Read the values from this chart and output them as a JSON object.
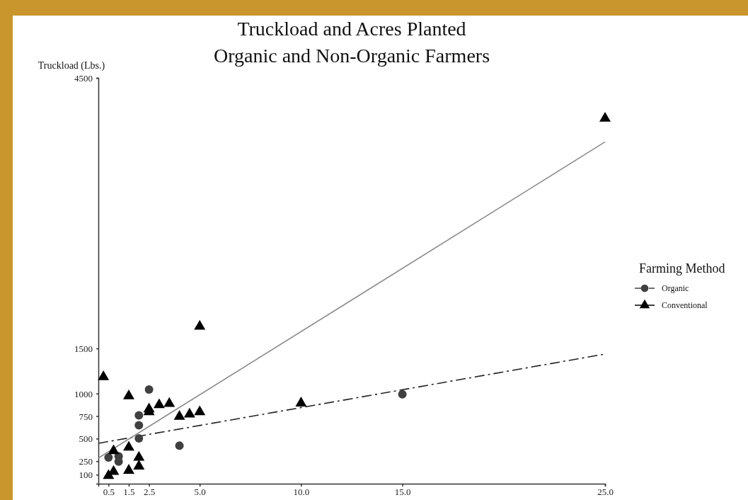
{
  "chart_data": {
    "type": "scatter",
    "title": "Truckload and Acres Planted\nOrganic and Non-Organic Farmers",
    "ylabel": "Truckload (Lbs.)",
    "legend_title": "Farming Method",
    "legend": "right",
    "xlim": [
      0,
      25
    ],
    "ylim": [
      0,
      4500
    ],
    "xticks": [
      0.5,
      1.5,
      2.5,
      {
        "value": 5,
        "label": "5.0"
      },
      {
        "value": 10,
        "label": "10.0"
      },
      {
        "value": 15,
        "label": "15.0"
      },
      {
        "value": 25,
        "label": "25.0"
      }
    ],
    "yticks": [
      100,
      250,
      500,
      750,
      1000,
      1500,
      4500
    ],
    "series": [
      {
        "name": "Organic",
        "marker": "circle",
        "line_style": "dashed",
        "color": "#404040",
        "x": [
          2.5,
          2,
          2,
          2,
          4,
          0.5,
          1,
          1,
          15
        ],
        "values": [
          1045,
          757,
          647,
          503,
          422,
          291,
          304,
          246,
          992
        ]
      },
      {
        "name": "Conventional",
        "marker": "triangle",
        "line_style": "solid",
        "color": "#000000",
        "x": [
          0.25,
          1.5,
          2.5,
          2.5,
          3,
          3.5,
          4,
          4.5,
          5,
          0.75,
          1.5,
          2,
          2,
          1.5,
          0.75,
          0.5,
          5,
          10,
          25
        ],
        "values": [
          1184,
          972,
          827,
          796,
          874,
          888,
          744,
          770,
          796,
          364,
          403,
          291,
          194,
          147,
          134,
          89,
          1744,
          893,
          4051
        ]
      },
      {
        "type": "line",
        "marker": "none",
        "line_style": "dashed",
        "color": "#222222",
        "x": [
          0,
          25
        ],
        "values": [
          448,
          1438
        ]
      },
      {
        "type": "line",
        "marker": "none",
        "line_style": "solid",
        "color": "#8c8c8c",
        "x": [
          0,
          25
        ],
        "values": [
          285,
          3790
        ]
      }
    ]
  }
}
